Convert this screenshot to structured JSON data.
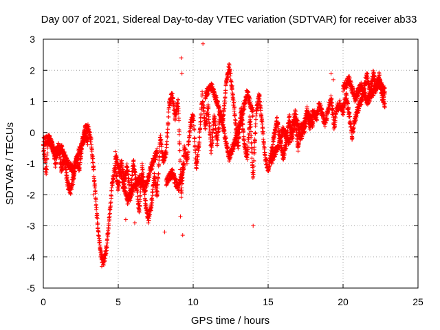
{
  "chart_data": {
    "type": "scatter",
    "title": "Day 007 of 2021, Sidereal Day-to-day VTEC variation (SDTVAR) for receiver ab33",
    "xlabel": "GPS time / hours",
    "ylabel": "SDTVAR / TECUs",
    "xlim": [
      0,
      25
    ],
    "ylim": [
      -5,
      3
    ],
    "xticks": [
      0,
      5,
      10,
      15,
      20,
      25
    ],
    "xtick_labels": [
      "0",
      "5",
      "10",
      "15",
      "20",
      "25"
    ],
    "yticks": [
      -5,
      -4,
      -3,
      -2,
      -1,
      0,
      1,
      2,
      3
    ],
    "ytick_labels": [
      "-5",
      "-4",
      "-3",
      "-2",
      "-1",
      "0",
      "1",
      "2",
      "3"
    ],
    "grid": true,
    "marker": "+",
    "series": [
      {
        "name": "SDTVAR",
        "color": "#ff0000",
        "x_step": 0.0083,
        "anchors": [
          [
            0.0,
            -0.45
          ],
          [
            0.1,
            -0.9
          ],
          [
            0.2,
            -1.3
          ],
          [
            0.3,
            -0.3
          ],
          [
            0.5,
            -0.3
          ],
          [
            0.7,
            -0.6
          ],
          [
            0.8,
            -1.0
          ],
          [
            1.0,
            -0.4
          ],
          [
            1.2,
            -1.2
          ],
          [
            1.4,
            -0.8
          ],
          [
            1.6,
            -1.6
          ],
          [
            1.8,
            -1.9
          ],
          [
            2.0,
            -1.5
          ],
          [
            2.2,
            -0.8
          ],
          [
            2.4,
            -1.2
          ],
          [
            2.6,
            -0.3
          ],
          [
            2.8,
            0.1
          ],
          [
            3.0,
            0.15
          ],
          [
            3.2,
            -0.3
          ],
          [
            3.4,
            -1.5
          ],
          [
            3.6,
            -2.8
          ],
          [
            3.8,
            -3.8
          ],
          [
            4.0,
            -4.2
          ],
          [
            4.2,
            -3.8
          ],
          [
            4.4,
            -2.8
          ],
          [
            4.6,
            -1.6
          ],
          [
            4.8,
            -1.1
          ],
          [
            5.0,
            -1.8
          ],
          [
            5.2,
            -0.9
          ],
          [
            5.4,
            -1.6
          ],
          [
            5.6,
            -1.1
          ],
          [
            5.8,
            -2.1
          ],
          [
            6.0,
            -0.9
          ],
          [
            6.2,
            -1.6
          ],
          [
            6.4,
            -2.5
          ],
          [
            6.6,
            -1.1
          ],
          [
            6.8,
            -2.2
          ],
          [
            7.0,
            -2.8
          ],
          [
            7.2,
            -2.4
          ],
          [
            7.4,
            -1.4
          ],
          [
            7.6,
            -2.0
          ],
          [
            7.8,
            -0.1
          ],
          [
            8.0,
            -0.9
          ],
          [
            8.2,
            -0.6
          ],
          [
            8.4,
            0.9
          ],
          [
            8.6,
            1.2
          ],
          [
            8.8,
            0.5
          ],
          [
            9.0,
            1.0
          ],
          [
            9.1,
            -0.5
          ],
          [
            9.2,
            -2.0
          ],
          [
            9.4,
            -0.5
          ],
          [
            9.6,
            -0.9
          ],
          [
            9.8,
            0.2
          ],
          [
            10.0,
            0.6
          ],
          [
            10.2,
            -1.2
          ],
          [
            10.4,
            -0.3
          ],
          [
            10.6,
            1.2
          ],
          [
            10.8,
            0.2
          ],
          [
            11.0,
            0.8
          ],
          [
            11.2,
            -0.6
          ],
          [
            11.4,
            0.5
          ],
          [
            11.6,
            -0.3
          ],
          [
            11.8,
            0.6
          ],
          [
            12.0,
            0.4
          ],
          [
            12.2,
            1.6
          ],
          [
            12.4,
            2.1
          ],
          [
            12.6,
            1.4
          ],
          [
            12.8,
            0.4
          ],
          [
            13.0,
            -0.5
          ],
          [
            13.2,
            0.8
          ],
          [
            13.4,
            -0.3
          ],
          [
            13.6,
            -0.8
          ],
          [
            13.8,
            0.5
          ],
          [
            14.0,
            -1.5
          ],
          [
            14.2,
            0.6
          ],
          [
            14.4,
            1.2
          ],
          [
            14.6,
            0.3
          ],
          [
            14.8,
            -0.8
          ],
          [
            15.0,
            -1.2
          ],
          [
            15.2,
            -0.7
          ],
          [
            15.4,
            -0.1
          ],
          [
            15.6,
            0.4
          ],
          [
            15.8,
            -0.2
          ],
          [
            16.0,
            -0.8
          ],
          [
            16.2,
            -0.4
          ],
          [
            16.4,
            0.5
          ],
          [
            16.6,
            -0.2
          ],
          [
            16.8,
            0.4
          ],
          [
            17.0,
            -0.5
          ],
          [
            17.2,
            0.3
          ],
          [
            17.4,
            0.0
          ],
          [
            17.6,
            0.6
          ],
          [
            17.8,
            0.2
          ],
          [
            18.0,
            0.7
          ],
          [
            18.2,
            0.4
          ],
          [
            18.4,
            0.9
          ],
          [
            18.6,
            0.6
          ],
          [
            18.8,
            0.3
          ],
          [
            19.0,
            0.7
          ],
          [
            19.2,
            1.1
          ],
          [
            19.4,
            0.2
          ],
          [
            19.6,
            0.8
          ],
          [
            19.8,
            0.9
          ],
          [
            20.0,
            0.7
          ],
          [
            20.2,
            1.2
          ],
          [
            20.4,
            0.6
          ],
          [
            20.6,
            -0.1
          ],
          [
            20.8,
            0.4
          ],
          [
            21.0,
            0.8
          ],
          [
            21.2,
            1.0
          ],
          [
            21.4,
            1.4
          ],
          [
            21.6,
            1.9
          ],
          [
            21.8,
            1.2
          ],
          [
            22.0,
            1.9
          ],
          [
            22.2,
            1.5
          ],
          [
            22.4,
            1.8
          ],
          [
            22.6,
            1.2
          ],
          [
            22.8,
            0.9
          ]
        ],
        "branches": [
          [
            [
              0.0,
              -0.3
            ],
            [
              0.4,
              -0.2
            ],
            [
              0.8,
              -0.7
            ],
            [
              1.2,
              -0.5
            ],
            [
              1.6,
              -1.0
            ],
            [
              2.0,
              -1.2
            ],
            [
              2.4,
              -0.6
            ],
            [
              2.8,
              -0.1
            ],
            [
              3.0,
              -0.3
            ]
          ],
          [
            [
              4.8,
              -0.7
            ],
            [
              5.2,
              -1.4
            ],
            [
              5.6,
              -2.2
            ],
            [
              6.0,
              -1.8
            ],
            [
              6.4,
              -1.5
            ],
            [
              6.8,
              -1.8
            ],
            [
              7.2,
              -1.1
            ],
            [
              7.6,
              -0.6
            ]
          ],
          [
            [
              8.2,
              -1.6
            ],
            [
              8.6,
              -1.3
            ],
            [
              9.0,
              -1.8
            ],
            [
              9.4,
              -1.0
            ]
          ],
          [
            [
              10.8,
              1.2
            ],
            [
              11.2,
              1.5
            ],
            [
              11.6,
              1.0
            ],
            [
              12.0,
              0.2
            ],
            [
              12.4,
              -0.8
            ],
            [
              12.8,
              -0.3
            ],
            [
              13.2,
              0.4
            ],
            [
              13.6,
              1.3
            ],
            [
              14.0,
              0.6
            ]
          ],
          [
            [
              15.2,
              -0.9
            ],
            [
              15.6,
              -0.5
            ],
            [
              16.0,
              0.1
            ],
            [
              16.4,
              -0.3
            ],
            [
              16.8,
              0.6
            ],
            [
              17.2,
              -0.2
            ],
            [
              17.6,
              0.7
            ],
            [
              18.0,
              0.2
            ]
          ],
          [
            [
              20.0,
              1.4
            ],
            [
              20.4,
              1.7
            ],
            [
              20.8,
              1.1
            ],
            [
              21.2,
              1.5
            ],
            [
              21.6,
              1.0
            ],
            [
              22.0,
              1.3
            ],
            [
              22.4,
              1.6
            ],
            [
              22.8,
              1.3
            ]
          ]
        ],
        "outliers": [
          [
            9.2,
            2.4
          ],
          [
            9.25,
            1.9
          ],
          [
            10.65,
            2.85
          ],
          [
            9.3,
            -3.3
          ],
          [
            9.15,
            -2.7
          ],
          [
            8.1,
            -3.2
          ],
          [
            3.9,
            -4.3
          ],
          [
            14.0,
            -3.0
          ],
          [
            6.1,
            -2.9
          ],
          [
            19.2,
            1.9
          ],
          [
            19.35,
            1.7
          ],
          [
            3.35,
            -2.0
          ],
          [
            5.5,
            -2.8
          ]
        ]
      }
    ]
  }
}
